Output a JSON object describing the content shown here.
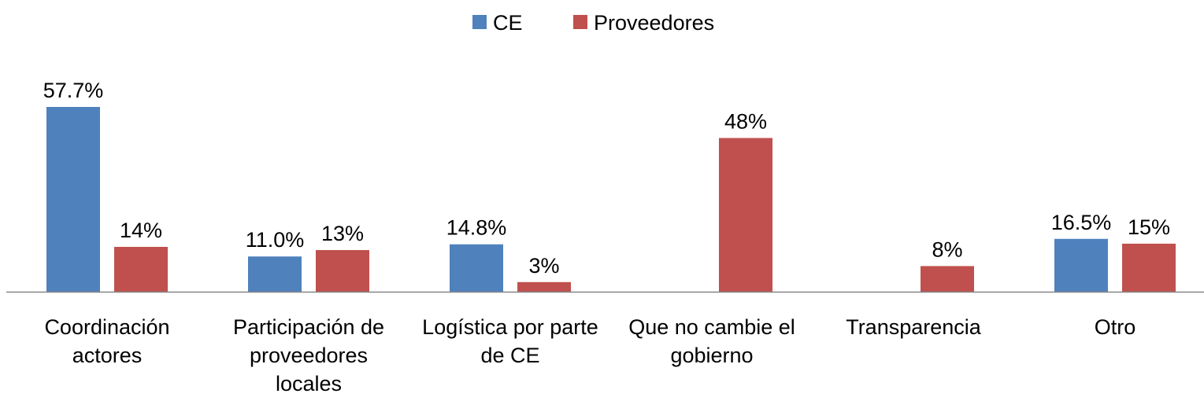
{
  "chart_data": {
    "type": "bar",
    "categories": [
      "Coordinación actores",
      "Participación de proveedores locales",
      "Logística por parte de CE",
      "Que no cambie el gobierno",
      "Transparencia",
      "Otro"
    ],
    "series": [
      {
        "name": "CE",
        "color": "#4f81bd",
        "values": [
          57.7,
          11.0,
          14.8,
          null,
          null,
          16.5
        ],
        "value_labels": [
          "57.7%",
          "11.0%",
          "14.8%",
          null,
          null,
          "16.5%"
        ]
      },
      {
        "name": "Proveedores",
        "color": "#c0504d",
        "values": [
          14,
          13,
          3,
          48,
          8,
          15
        ],
        "value_labels": [
          "14%",
          "13%",
          "3%",
          "48%",
          "8%",
          "15%"
        ]
      }
    ],
    "legend": "top"
  }
}
